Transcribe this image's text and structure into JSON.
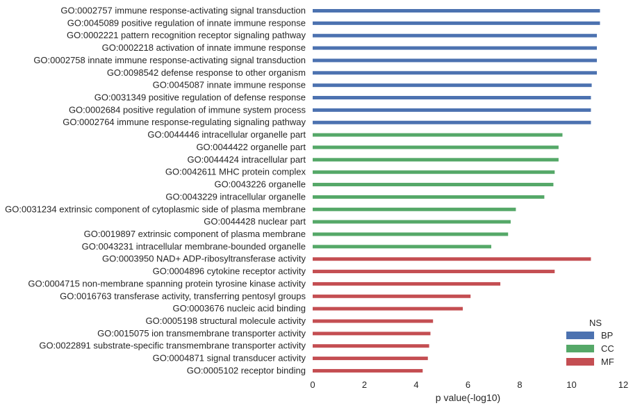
{
  "chart_data": {
    "type": "bar",
    "orientation": "horizontal",
    "xlabel": "p value(-log10)",
    "xlim": [
      0,
      12
    ],
    "xticks": [
      0,
      2,
      4,
      6,
      8,
      10,
      12
    ],
    "grid": false,
    "legend": {
      "title": "NS",
      "placement": "bottom-right",
      "entries": [
        {
          "name": "BP",
          "color": "#4c72b0"
        },
        {
          "name": "CC",
          "color": "#55a868"
        },
        {
          "name": "MF",
          "color": "#c44e52"
        }
      ]
    },
    "categories": [
      "GO:0002757 immune response-activating signal transduction",
      "GO:0045089 positive regulation of innate immune response",
      "GO:0002221 pattern recognition receptor signaling pathway",
      "GO:0002218 activation of innate immune response",
      "GO:0002758 innate immune response-activating signal transduction",
      "GO:0098542 defense response to other organism",
      "GO:0045087 innate immune response",
      "GO:0031349 positive regulation of defense response",
      "GO:0002684 positive regulation of immune system process",
      "GO:0002764 immune response-regulating signaling pathway",
      "GO:0044446 intracellular organelle part",
      "GO:0044422 organelle part",
      "GO:0044424 intracellular part",
      "GO:0042611 MHC protein complex",
      "GO:0043226 organelle",
      "GO:0043229 intracellular organelle",
      "GO:0031234 extrinsic component of cytoplasmic side of plasma membrane",
      "GO:0044428 nuclear part",
      "GO:0019897 extrinsic component of plasma membrane",
      "GO:0043231 intracellular membrane-bounded organelle",
      "GO:0003950 NAD+ ADP-ribosyltransferase activity",
      "GO:0004896 cytokine receptor activity",
      "GO:0004715 non-membrane spanning protein tyrosine kinase activity",
      "GO:0016763 transferase activity, transferring pentosyl groups",
      "GO:0003676 nucleic acid binding",
      "GO:0005198 structural molecule activity",
      "GO:0015075 ion transmembrane transporter activity",
      "GO:0022891 substrate-specific transmembrane transporter activity",
      "GO:0004871 signal transducer activity",
      "GO:0005102 receptor binding"
    ],
    "ns": [
      "BP",
      "BP",
      "BP",
      "BP",
      "BP",
      "BP",
      "BP",
      "BP",
      "BP",
      "BP",
      "CC",
      "CC",
      "CC",
      "CC",
      "CC",
      "CC",
      "CC",
      "CC",
      "CC",
      "CC",
      "MF",
      "MF",
      "MF",
      "MF",
      "MF",
      "MF",
      "MF",
      "MF",
      "MF",
      "MF"
    ],
    "values": [
      11.1,
      11.1,
      10.98,
      10.98,
      10.98,
      10.98,
      10.78,
      10.75,
      10.75,
      10.75,
      9.65,
      9.5,
      9.5,
      9.35,
      9.3,
      8.95,
      7.85,
      7.65,
      7.55,
      6.9,
      10.75,
      9.35,
      7.25,
      6.1,
      5.8,
      4.65,
      4.55,
      4.5,
      4.45,
      4.25
    ]
  }
}
